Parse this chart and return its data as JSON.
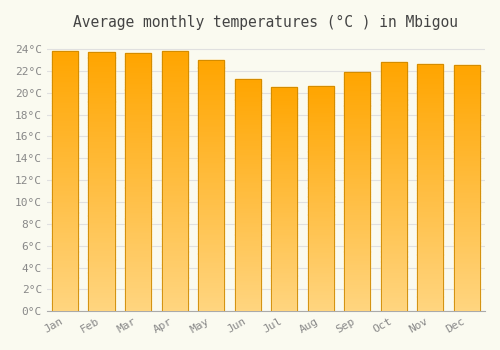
{
  "title": "Average monthly temperatures (°C ) in Mbigou",
  "months": [
    "Jan",
    "Feb",
    "Mar",
    "Apr",
    "May",
    "Jun",
    "Jul",
    "Aug",
    "Sep",
    "Oct",
    "Nov",
    "Dec"
  ],
  "temperatures": [
    23.8,
    23.7,
    23.6,
    23.8,
    23.0,
    21.3,
    20.5,
    20.6,
    21.9,
    22.8,
    22.6,
    22.5
  ],
  "bar_color_main": "#FFA500",
  "bar_color_light": "#FFD580",
  "bar_edge_color": "#CC8800",
  "background_color": "#FAFAF0",
  "grid_color": "#E0E0E0",
  "ylim": [
    0,
    25
  ],
  "ytick_step": 2,
  "title_fontsize": 10.5,
  "tick_fontsize": 8,
  "tick_color": "#888888",
  "title_color": "#444444",
  "bar_width": 0.72,
  "gradient_steps": 100
}
